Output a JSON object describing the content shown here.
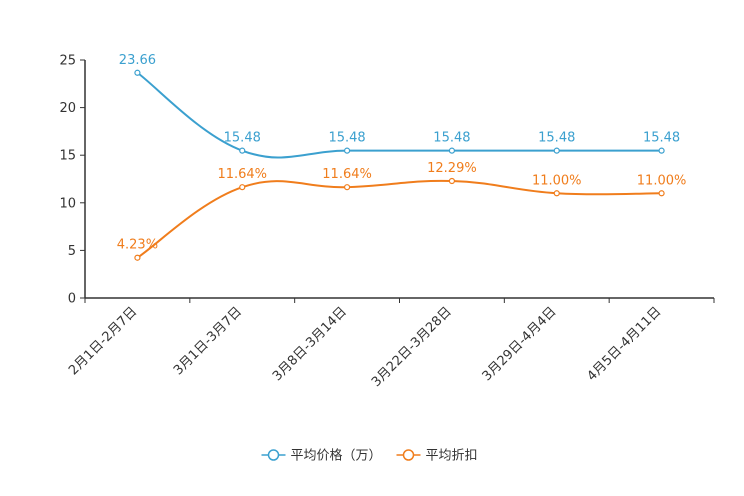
{
  "chart_data": {
    "type": "line",
    "categories": [
      "2月1日-2月7日",
      "3月1日-3月7日",
      "3月8日-3月14日",
      "3月22日-3月28日",
      "3月29日-4月4日",
      "4月5日-4月11日"
    ],
    "ylim": [
      0,
      25
    ],
    "yticks": [
      0,
      5,
      10,
      15,
      20,
      25
    ],
    "ytick_labels": [
      "0",
      "5",
      "10",
      "15",
      "20",
      "25"
    ],
    "grid": false,
    "smooth": true,
    "legend_position": "bottom-center",
    "series": [
      {
        "name": "平均价格（万）",
        "values": [
          23.66,
          15.48,
          15.48,
          15.48,
          15.48,
          15.48
        ],
        "labels": [
          "23.66",
          "15.48",
          "15.48",
          "15.48",
          "15.48",
          "15.48"
        ],
        "color": "#3ba0cf"
      },
      {
        "name": "平均折扣",
        "values": [
          4.23,
          11.64,
          11.64,
          12.29,
          11.0,
          11.0
        ],
        "labels": [
          "4.23%",
          "11.64%",
          "11.64%",
          "12.29%",
          "11.00%",
          "11.00%"
        ],
        "color": "#f07d1c"
      }
    ]
  }
}
